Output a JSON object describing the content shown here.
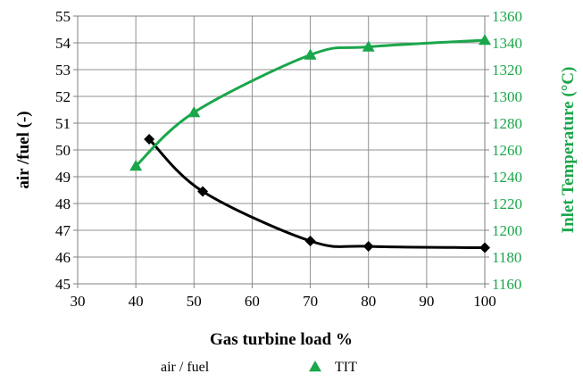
{
  "chart_data": {
    "type": "line",
    "xlabel": "Gas turbine load %",
    "ylabel_left": "air /fuel (-)",
    "ylabel_right": "Inlet Temperature (°C)",
    "xlim": [
      30,
      100
    ],
    "xticks": [
      30,
      40,
      50,
      60,
      70,
      80,
      90,
      100
    ],
    "ylim_left": [
      45,
      55
    ],
    "yticks_left": [
      45,
      46,
      47,
      48,
      49,
      50,
      51,
      52,
      53,
      54,
      55
    ],
    "ylim_right": [
      1160,
      1360
    ],
    "yticks_right": [
      1160,
      1180,
      1200,
      1220,
      1240,
      1260,
      1280,
      1300,
      1320,
      1340,
      1360
    ],
    "grid": true,
    "legend_position": "bottom",
    "series": [
      {
        "name": "air / fuel",
        "axis": "left",
        "marker": "diamond",
        "color": "#000000",
        "x": [
          42.3,
          51.5,
          70,
          80,
          100
        ],
        "y": [
          50.4,
          48.45,
          46.6,
          46.4,
          46.35
        ]
      },
      {
        "name": "TIT",
        "axis": "right",
        "marker": "triangle",
        "color": "#1aa64a",
        "x": [
          40,
          50,
          70,
          80,
          100
        ],
        "y": [
          1248,
          1288,
          1331,
          1337,
          1342
        ]
      }
    ]
  }
}
